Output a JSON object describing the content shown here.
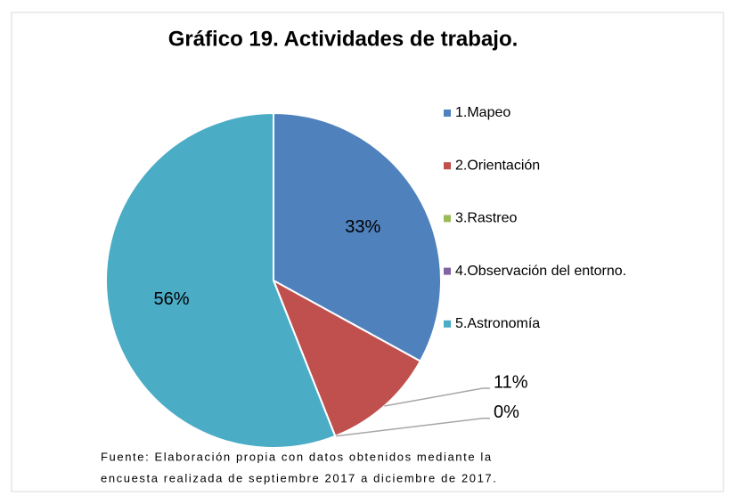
{
  "chart_data": {
    "type": "pie",
    "title": "Gráfico 19. Actividades de trabajo.",
    "categories": [
      "1.Mapeo",
      "2.Orientación",
      "3.Rastreo",
      "4.Observación del entorno.",
      "5.Astronomía"
    ],
    "values": [
      33,
      11,
      0,
      0,
      56
    ],
    "value_labels": [
      "33%",
      "11%",
      "0%",
      null,
      "56%"
    ],
    "colors": [
      "#4f81bd",
      "#c0504d",
      "#9bbb59",
      "#8064a2",
      "#4bacc6"
    ],
    "legend": "right",
    "note": [
      "Fuente: Elaboración propia con datos obtenidos mediante la",
      "encuesta realizada de septiembre 2017 a diciembre de 2017."
    ]
  }
}
